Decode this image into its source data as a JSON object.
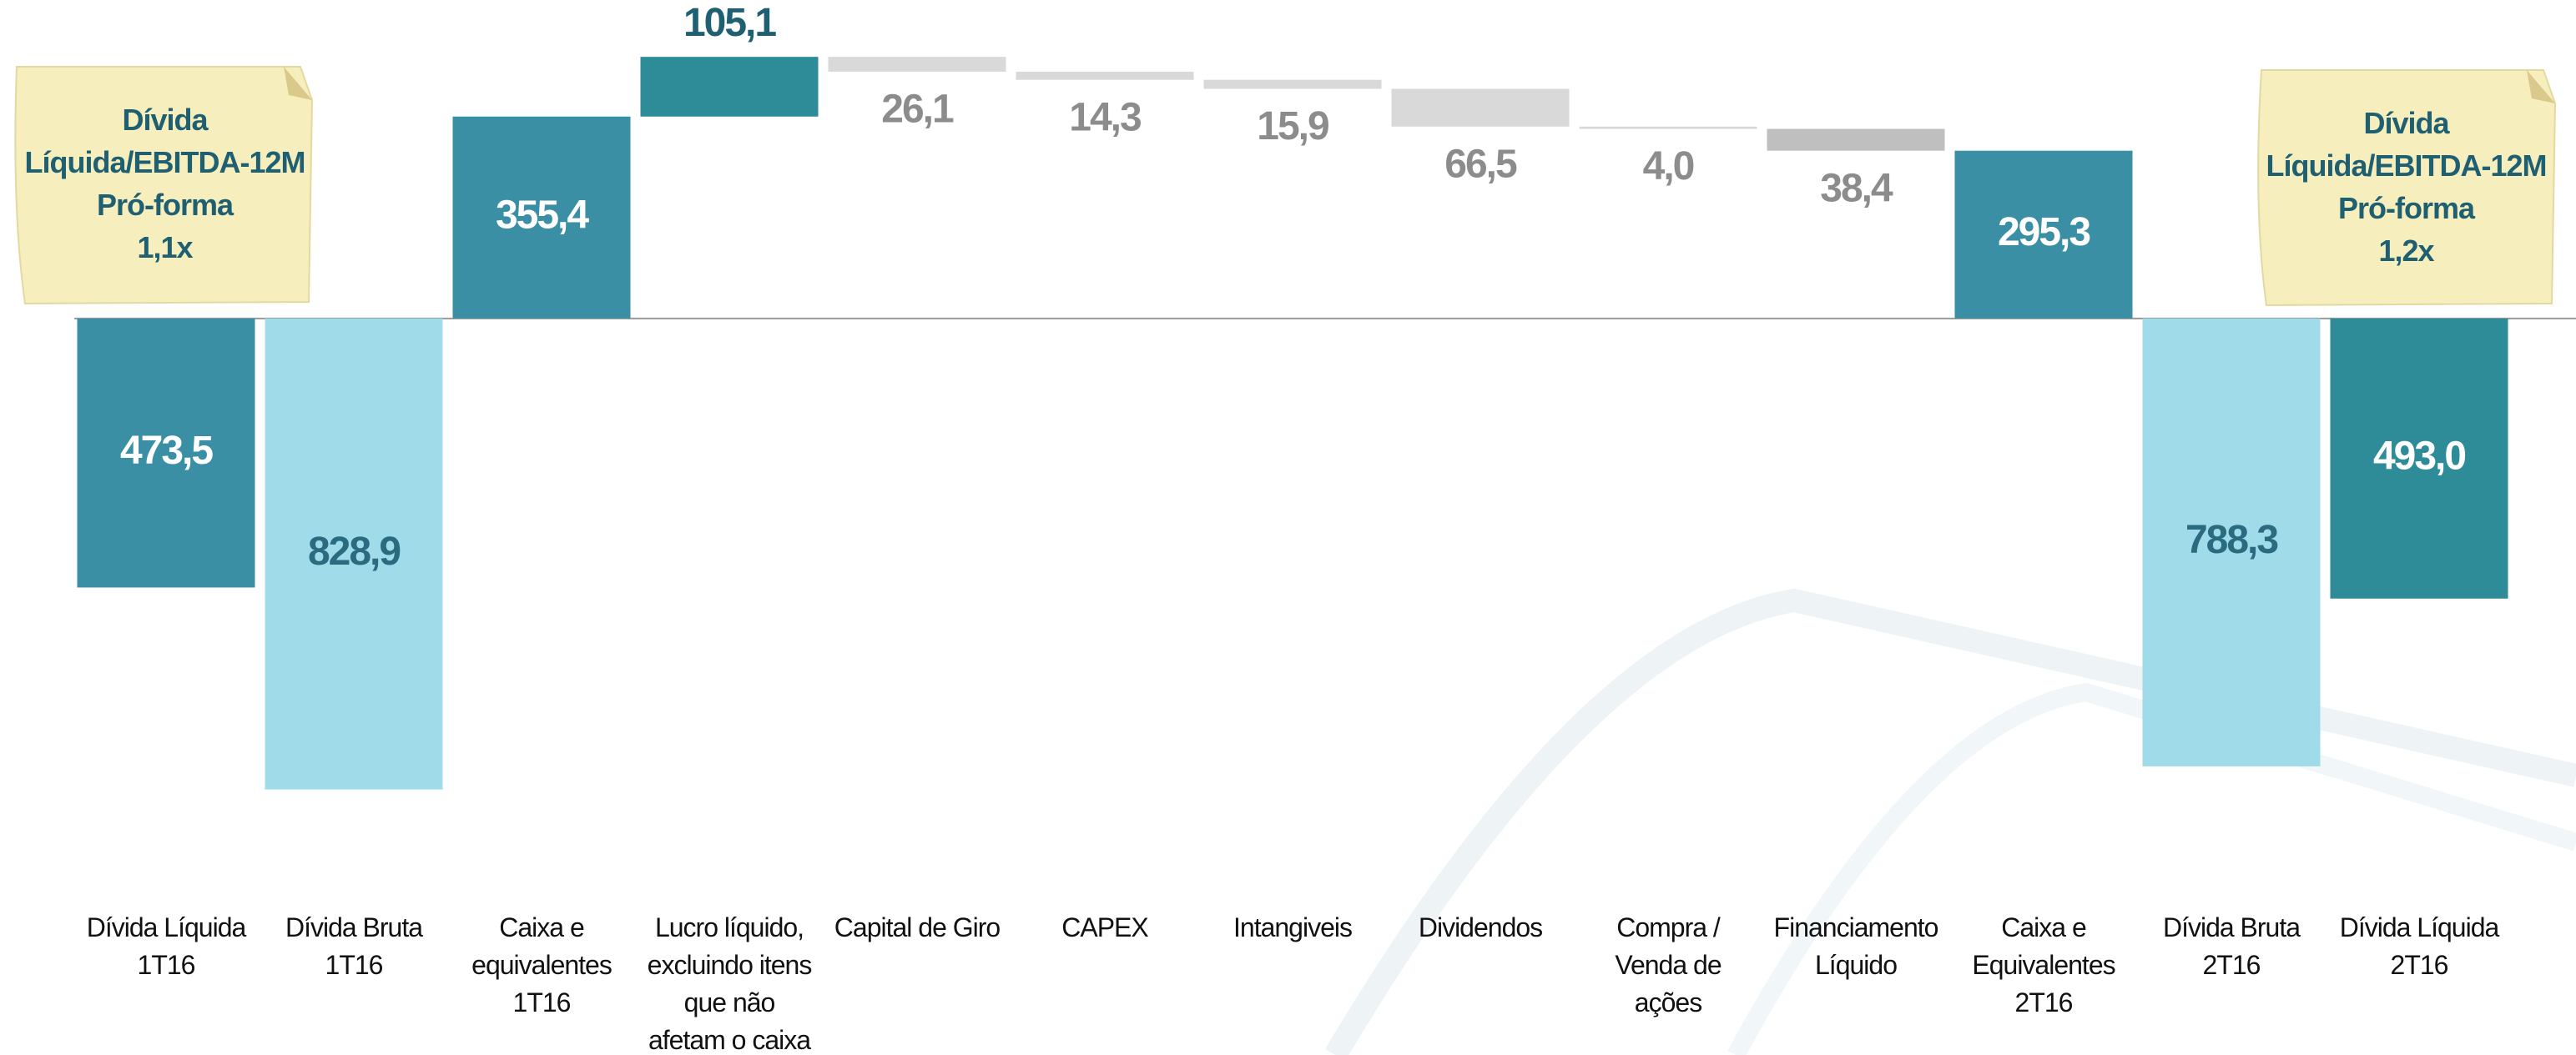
{
  "chart_data": {
    "type": "waterfall",
    "categories": [
      "Dívida Líquida\n1T16",
      "Dívida Bruta\n1T16",
      "Caixa e\nequivalentes\n1T16",
      "Lucro líquido,\nexcluindo itens\nque não\nafetam o caixa",
      "Capital de Giro",
      "CAPEX",
      "Intangiveis",
      "Dividendos",
      "Compra /\nVenda de\nações",
      "Financiamento\nLíquido",
      "Caixa e\nEquivalentes\n2T16",
      "Dívida Bruta\n2T16",
      "Dívida Líquida\n2T16"
    ],
    "values": [
      -473.5,
      -828.9,
      355.4,
      105.1,
      -26.1,
      -14.3,
      -15.9,
      -66.5,
      -4.0,
      -38.4,
      295.3,
      -788.3,
      -493.0
    ],
    "value_labels": [
      "473,5",
      "828,9",
      "355,4",
      "105,1",
      "26,1",
      "14,3",
      "15,9",
      "66,5",
      "4,0",
      "38,4",
      "295,3",
      "788,3",
      "493,0"
    ],
    "measure": [
      "absolute",
      "absolute",
      "absolute",
      "relative",
      "relative",
      "relative",
      "relative",
      "relative",
      "relative",
      "relative",
      "absolute",
      "absolute",
      "absolute"
    ],
    "colors": [
      "#3a8fa5",
      "#a0dbea",
      "#3a8fa5",
      "#2e8b98",
      "#d9d9d9",
      "#d9d9d9",
      "#d9d9d9",
      "#d9d9d9",
      "#d9d9d9",
      "#bfbfbf",
      "#3a8fa5",
      "#a0dbea",
      "#2e8b98"
    ],
    "ylim": [
      -900,
      540
    ],
    "annotations": [
      {
        "lines": [
          "Dívida",
          "Líquida/EBITDA-12M",
          "Pró-forma",
          "1,1x"
        ]
      },
      {
        "lines": [
          "Dívida",
          "Líquida/EBITDA-12M",
          "Pró-forma",
          "1,2x"
        ]
      }
    ]
  }
}
